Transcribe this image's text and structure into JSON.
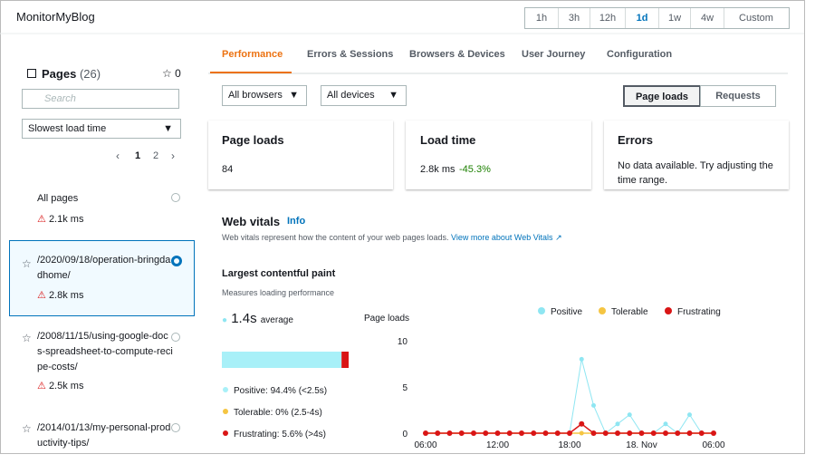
{
  "app_title": "MonitorMyBlog",
  "time_ranges": [
    "1h",
    "3h",
    "12h",
    "1d",
    "1w",
    "4w",
    "Custom"
  ],
  "pages": {
    "title": "Pages",
    "count": "(26)",
    "favorites": "0",
    "search_placeholder": "Search",
    "sort": "Slowest load time",
    "pagination": [
      "1",
      "2"
    ],
    "items": [
      {
        "name": "All pages",
        "load_time": "2.1k ms"
      },
      {
        "name": "/2020/09/18/operation-bringdadhome/",
        "load_time": "2.8k ms"
      },
      {
        "name": "/2008/11/15/using-google-docs-spreadsheet-to-compute-recipe-costs/",
        "load_time": "2.5k ms"
      },
      {
        "name": "/2014/01/13/my-personal-productivity-tips/"
      }
    ]
  },
  "tabs": [
    "Performance",
    "Errors & Sessions",
    "Browsers & Devices",
    "User Journey",
    "Configuration"
  ],
  "filters": [
    "All browsers",
    "All devices"
  ],
  "toggle": [
    "Page loads",
    "Requests"
  ],
  "cards": [
    {
      "title": "Page loads",
      "value": "84"
    },
    {
      "title": "Load time",
      "value": "2.8k ms",
      "change": "-45.3%"
    },
    {
      "title": "Errors",
      "message": "No data available. Try adjusting the time range."
    }
  ],
  "web_vitals": {
    "title": "Web vitals",
    "info": "Info",
    "description": "Web vitals represent how the content of your web pages loads.",
    "link": "View more about Web Vitals"
  },
  "lcp": {
    "title": "Largest contentful paint",
    "subtitle": "Measures loading performance",
    "value": "1.4s",
    "value_label": "average",
    "breakdown": [
      {
        "label": "Positive: 94.4% (<2.5s)",
        "percent": 94.4,
        "color": "#a8f0f8"
      },
      {
        "label": "Tolerable: 0% (2.5-4s)",
        "percent": 0,
        "color": "#f5c542"
      },
      {
        "label": "Frustrating: 5.6% (>4s)",
        "percent": 5.6,
        "color": "#d91515"
      }
    ]
  },
  "chart_data": {
    "type": "line",
    "y_axis_title": "Page loads",
    "categories": [
      "06:00",
      null,
      null,
      null,
      null,
      null,
      "12:00",
      null,
      null,
      null,
      null,
      null,
      "18:00",
      null,
      null,
      null,
      null,
      null,
      "18. Nov",
      null,
      null,
      null,
      null,
      null,
      "06:00"
    ],
    "series": [
      {
        "name": "Positive",
        "color": "#8fe6f2",
        "values": [
          0,
          0,
          0,
          0,
          0,
          0,
          0,
          0,
          0,
          0,
          0,
          0,
          0,
          8,
          3,
          0,
          1,
          2,
          0,
          0,
          1,
          0,
          2,
          0,
          0
        ]
      },
      {
        "name": "Tolerable",
        "color": "#f5c542",
        "values": [
          0,
          0,
          0,
          0,
          0,
          0,
          0,
          0,
          0,
          0,
          0,
          0,
          0,
          0,
          0,
          0,
          0,
          0,
          0,
          0,
          0,
          0,
          0,
          0,
          0
        ]
      },
      {
        "name": "Frustrating",
        "color": "#d91515",
        "values": [
          0,
          0,
          0,
          0,
          0,
          0,
          0,
          0,
          0,
          0,
          0,
          0,
          0,
          1,
          0,
          0,
          0,
          0,
          0,
          0,
          0,
          0,
          0,
          0,
          0
        ]
      }
    ],
    "ylim": [
      0,
      10
    ],
    "yticks": [
      0,
      5,
      10
    ]
  }
}
